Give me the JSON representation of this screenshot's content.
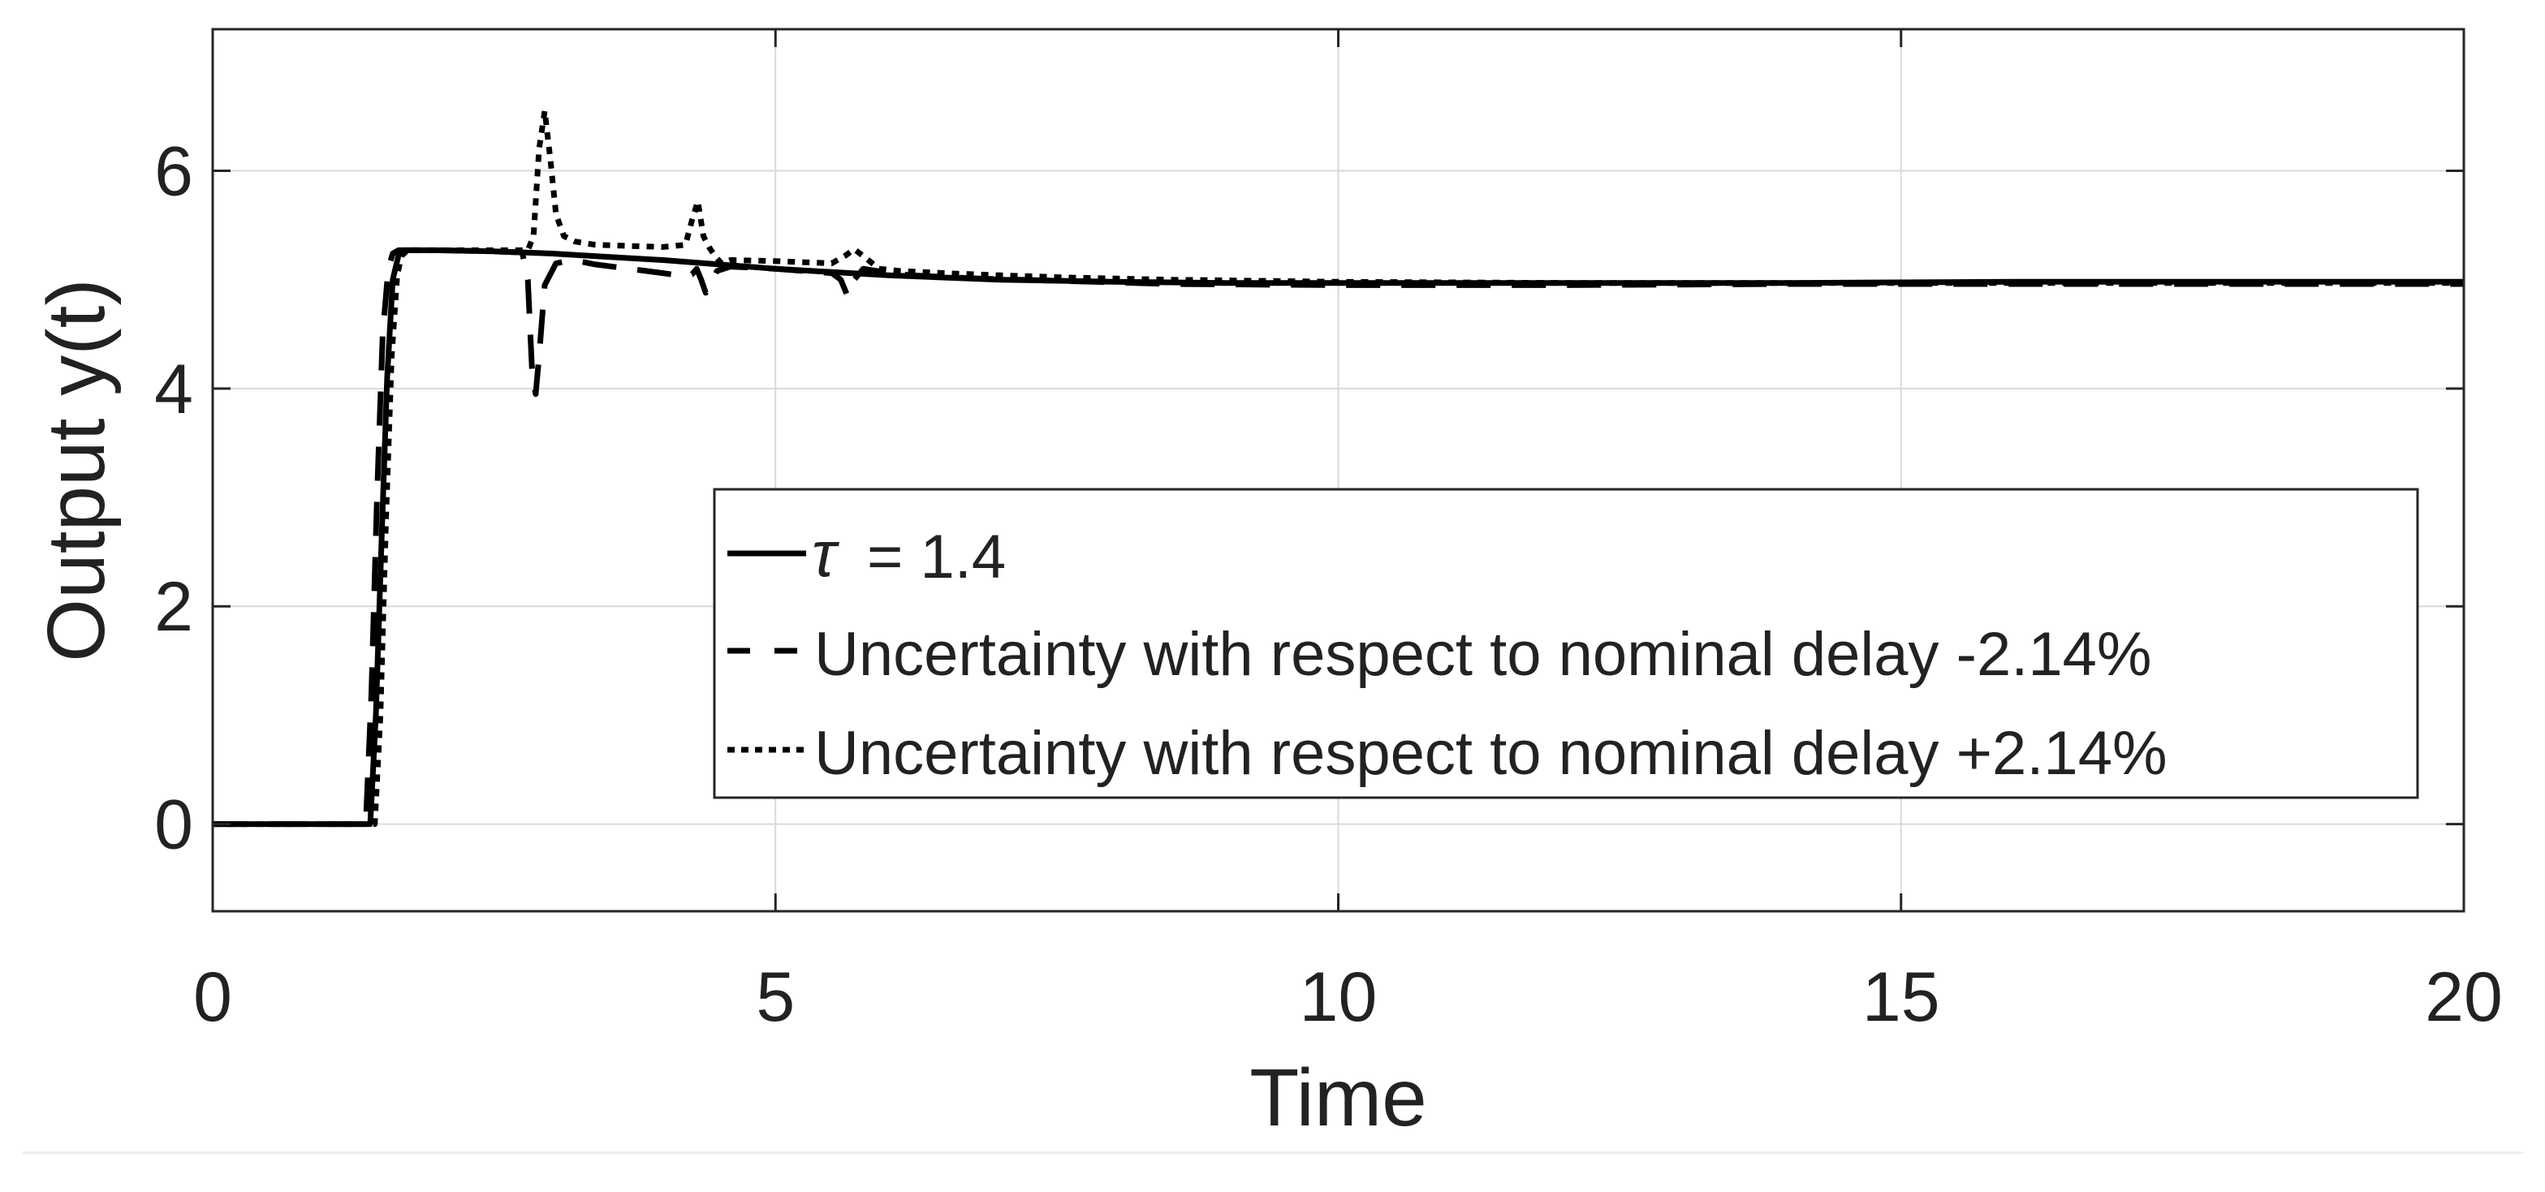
{
  "chart_data": {
    "type": "line",
    "title": "",
    "xlabel": "Time",
    "ylabel": "Output y(t)",
    "xlim": [
      0,
      20
    ],
    "ylim": [
      -0.8,
      7.3
    ],
    "xticks": [
      0,
      5,
      10,
      15,
      20
    ],
    "xtick_labels": [
      "0",
      "5",
      "10",
      "15",
      "20"
    ],
    "yticks": [
      0,
      2,
      4,
      6
    ],
    "ytick_labels": [
      "0",
      "2",
      "4",
      "6"
    ],
    "grid": true,
    "legend_position": "center-right",
    "legend": [
      {
        "symbol": "τ",
        "text": " = 1.4",
        "style": "solid"
      },
      {
        "text": "Uncertainty with respect to nominal delay -2.14%",
        "style": "dashed"
      },
      {
        "text": "Uncertainty with respect to nominal delay +2.14%",
        "style": "dotted"
      }
    ],
    "series": [
      {
        "style": "solid",
        "color": "#000000",
        "x": [
          0,
          1.4,
          1.45,
          1.5,
          1.55,
          1.6,
          1.65,
          1.7,
          2.0,
          2.5,
          3.0,
          3.5,
          4.0,
          4.5,
          5.0,
          5.5,
          6.0,
          7.0,
          8.0,
          9.0,
          10.0,
          12.0,
          14.0,
          16.0,
          18.0,
          20.0
        ],
        "y": [
          0,
          0,
          1.0,
          2.6,
          4.1,
          5.0,
          5.22,
          5.27,
          5.27,
          5.26,
          5.24,
          5.21,
          5.18,
          5.14,
          5.1,
          5.07,
          5.04,
          5.0,
          4.98,
          4.97,
          4.97,
          4.97,
          4.97,
          4.98,
          4.98,
          4.98
        ]
      },
      {
        "style": "dashed",
        "color": "#000000",
        "x": [
          0,
          1.36,
          1.41,
          1.46,
          1.51,
          1.56,
          1.6,
          1.65,
          2.0,
          2.5,
          2.75,
          2.8,
          2.84,
          2.87,
          2.9,
          2.95,
          3.05,
          3.2,
          3.4,
          3.7,
          4.0,
          4.2,
          4.26,
          4.3,
          4.34,
          4.38,
          4.42,
          4.48,
          4.6,
          5.0,
          5.5,
          5.58,
          5.64,
          5.7,
          5.78,
          5.9,
          6.2,
          6.8,
          7.5,
          8.5,
          10.0,
          12.0,
          14.0,
          16.0,
          18.0,
          20.0
        ],
        "y": [
          0,
          0,
          1.2,
          3.0,
          4.5,
          5.1,
          5.24,
          5.27,
          5.27,
          5.26,
          5.25,
          5.0,
          4.1,
          3.95,
          4.3,
          4.95,
          5.15,
          5.18,
          5.14,
          5.1,
          5.06,
          5.03,
          5.05,
          5.1,
          5.0,
          4.88,
          4.95,
          5.08,
          5.12,
          5.1,
          5.06,
          5.0,
          4.85,
          5.0,
          5.1,
          5.08,
          5.04,
          5.01,
          4.99,
          4.96,
          4.95,
          4.95,
          4.96,
          4.96,
          4.96,
          4.96
        ]
      },
      {
        "style": "dotted",
        "color": "#000000",
        "x": [
          0,
          1.44,
          1.49,
          1.54,
          1.59,
          1.64,
          1.68,
          1.73,
          2.0,
          2.5,
          2.8,
          2.85,
          2.9,
          2.95,
          3.0,
          3.05,
          3.12,
          3.22,
          3.4,
          3.7,
          4.0,
          4.2,
          4.26,
          4.31,
          4.36,
          4.41,
          4.46,
          4.52,
          4.6,
          5.0,
          5.5,
          5.62,
          5.7,
          5.8,
          5.92,
          6.1,
          6.5,
          7.0,
          7.6,
          8.5,
          10.0,
          12.0,
          14.0,
          16.0,
          18.0,
          20.0
        ],
        "y": [
          0,
          0,
          1.0,
          2.8,
          4.3,
          5.05,
          5.22,
          5.27,
          5.27,
          5.27,
          5.27,
          5.4,
          6.2,
          6.55,
          6.1,
          5.6,
          5.4,
          5.35,
          5.32,
          5.31,
          5.3,
          5.32,
          5.55,
          5.72,
          5.4,
          5.3,
          5.22,
          5.15,
          5.18,
          5.17,
          5.15,
          5.22,
          5.28,
          5.2,
          5.1,
          5.08,
          5.06,
          5.04,
          5.02,
          5.0,
          4.98,
          4.97,
          4.97,
          4.97,
          4.97,
          4.97
        ]
      }
    ]
  }
}
